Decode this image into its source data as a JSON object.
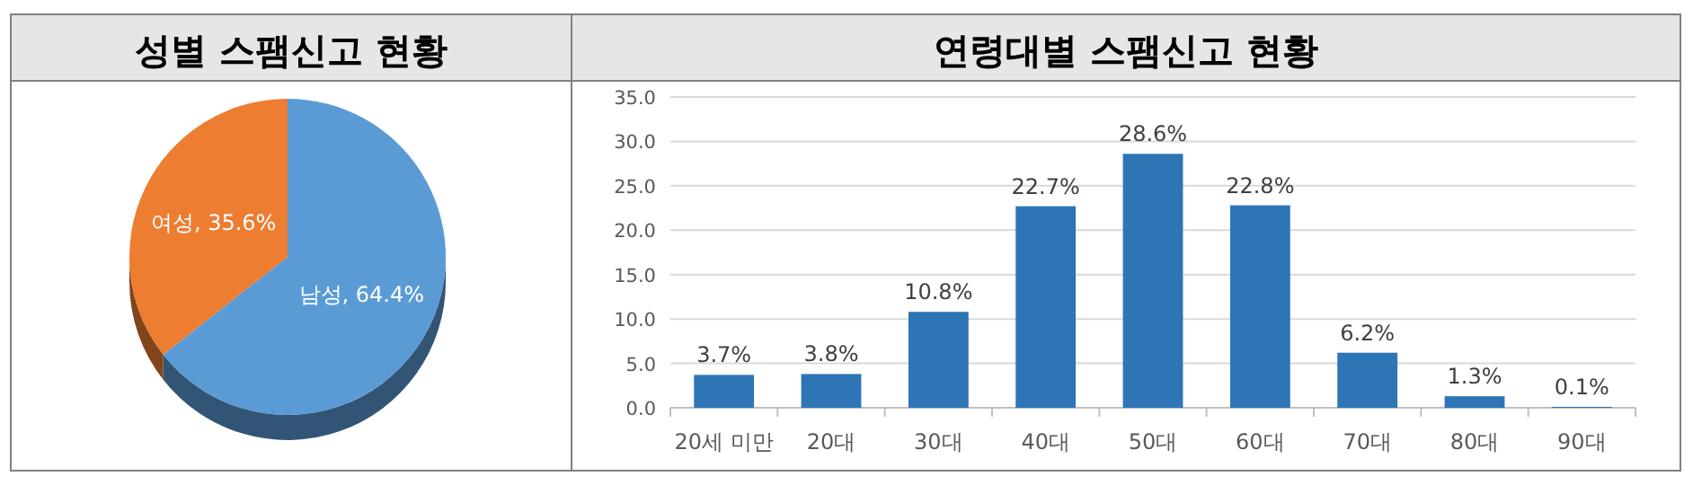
{
  "chart_data": [
    {
      "type": "pie",
      "title": "성별 스팸신고 현황",
      "categories": [
        "남성",
        "여성"
      ],
      "values": [
        64.4,
        35.6
      ],
      "colors": [
        "#5b9bd5",
        "#ed7d31"
      ],
      "value_labels": [
        ", 64.4%",
        ", 35.6%"
      ]
    },
    {
      "type": "bar",
      "title": "연령대별 스팸신고 현황",
      "categories": [
        "20세 미만",
        "20대",
        "30대",
        "40대",
        "50대",
        "60대",
        "70대",
        "80대",
        "90대"
      ],
      "values": [
        3.7,
        3.8,
        10.8,
        22.7,
        28.6,
        22.8,
        6.2,
        1.3,
        0.1
      ],
      "value_labels": [
        "3.7%",
        "3.8%",
        "10.8%",
        "22.7%",
        "28.6%",
        "22.8%",
        "6.2%",
        "1.3%",
        "0.1%"
      ],
      "color": "#2e75b6",
      "ylim": [
        0,
        35
      ],
      "grid": "y",
      "yticks": [
        {
          "value": 0,
          "label": "0.0"
        },
        {
          "value": 5,
          "label": "5.0"
        },
        {
          "value": 10,
          "label": "10.0"
        },
        {
          "value": 15,
          "label": "15.0"
        },
        {
          "value": 20,
          "label": "20.0"
        },
        {
          "value": 25,
          "label": "25.0"
        },
        {
          "value": 30,
          "label": "30.0"
        },
        {
          "value": 35,
          "label": "35.0"
        }
      ]
    }
  ]
}
